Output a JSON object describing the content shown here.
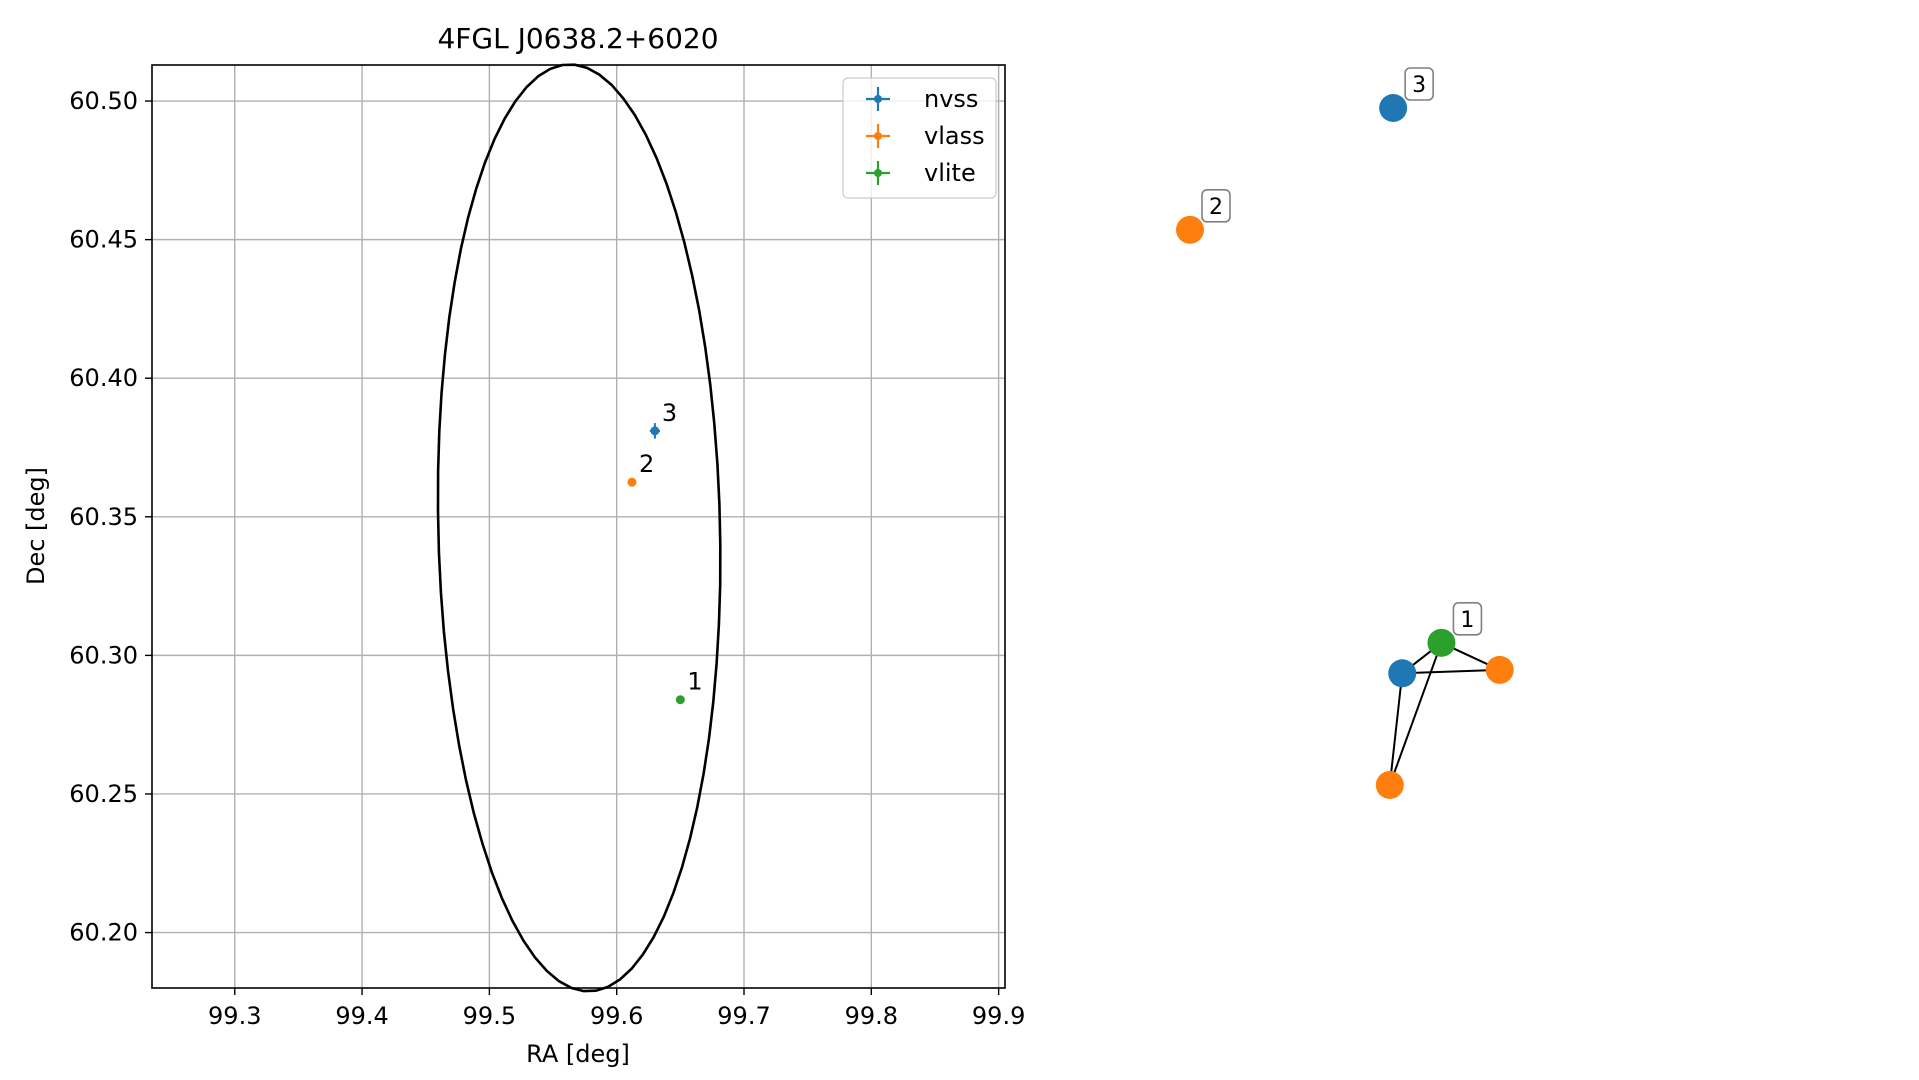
{
  "colors": {
    "nvss": "#1f77b4",
    "vlass": "#ff7f0e",
    "vlite": "#2ca02c",
    "grid": "#b0b0b0",
    "axes": "#000000",
    "ellipse": "#000000",
    "node_box_edge": "#808080"
  },
  "chart_data": [
    {
      "type": "scatter",
      "title": "4FGL J0638.2+6020",
      "xlabel": "RA [deg]",
      "ylabel": "Dec [deg]",
      "xlim": [
        99.235,
        99.905
      ],
      "ylim": [
        60.18,
        60.513
      ],
      "xticks": [
        99.3,
        99.4,
        99.5,
        99.6,
        99.7,
        99.8,
        99.9
      ],
      "xtick_labels": [
        "99.3",
        "99.4",
        "99.5",
        "99.6",
        "99.7",
        "99.8",
        "99.9"
      ],
      "yticks": [
        60.2,
        60.25,
        60.3,
        60.35,
        60.4,
        60.45,
        60.5
      ],
      "ytick_labels": [
        "60.20",
        "60.25",
        "60.30",
        "60.35",
        "60.40",
        "60.45",
        "60.50"
      ],
      "grid": true,
      "legend_position": "top-right",
      "series": [
        {
          "name": "nvss",
          "color": "#1f77b4",
          "points": [
            {
              "id": "3",
              "ra": 99.63,
              "dec": 60.381,
              "ra_err": 0.004,
              "dec_err": 0.0028
            }
          ]
        },
        {
          "name": "vlass",
          "color": "#ff7f0e",
          "points": [
            {
              "id": "2",
              "ra": 99.612,
              "dec": 60.3625,
              "ra_err": 0.0018,
              "dec_err": 0.0008
            }
          ]
        },
        {
          "name": "vlite",
          "color": "#2ca02c",
          "points": [
            {
              "id": "1",
              "ra": 99.65,
              "dec": 60.284,
              "ra_err": 0.0022,
              "dec_err": 0.001
            }
          ]
        }
      ],
      "ellipse": {
        "center_ra": 99.5705,
        "center_dec": 60.346,
        "semi_ra": 0.1675,
        "semi_dec": 0.1105,
        "angle_deg": 85.5
      }
    },
    {
      "type": "network",
      "nodes": [
        {
          "id": "n3",
          "label": "3",
          "survey": "nvss",
          "x": 0.425,
          "y": 1.0
        },
        {
          "id": "n2",
          "label": "2",
          "survey": "vlass",
          "x": 0.0,
          "y": 0.82
        },
        {
          "id": "n1_vlite",
          "label": "1",
          "survey": "vlite",
          "x": 0.526,
          "y": 0.21
        },
        {
          "id": "n1_nvss",
          "label": "",
          "survey": "nvss",
          "x": 0.444,
          "y": 0.165
        },
        {
          "id": "n1_vlass_a",
          "label": "",
          "survey": "vlass",
          "x": 0.648,
          "y": 0.17
        },
        {
          "id": "n1_vlass_b",
          "label": "",
          "survey": "vlass",
          "x": 0.418,
          "y": 0.0
        }
      ],
      "edges": [
        [
          "n1_vlite",
          "n1_nvss"
        ],
        [
          "n1_vlite",
          "n1_vlass_a"
        ],
        [
          "n1_vlite",
          "n1_vlass_b"
        ],
        [
          "n1_nvss",
          "n1_vlass_a"
        ],
        [
          "n1_nvss",
          "n1_vlass_b"
        ]
      ]
    }
  ]
}
